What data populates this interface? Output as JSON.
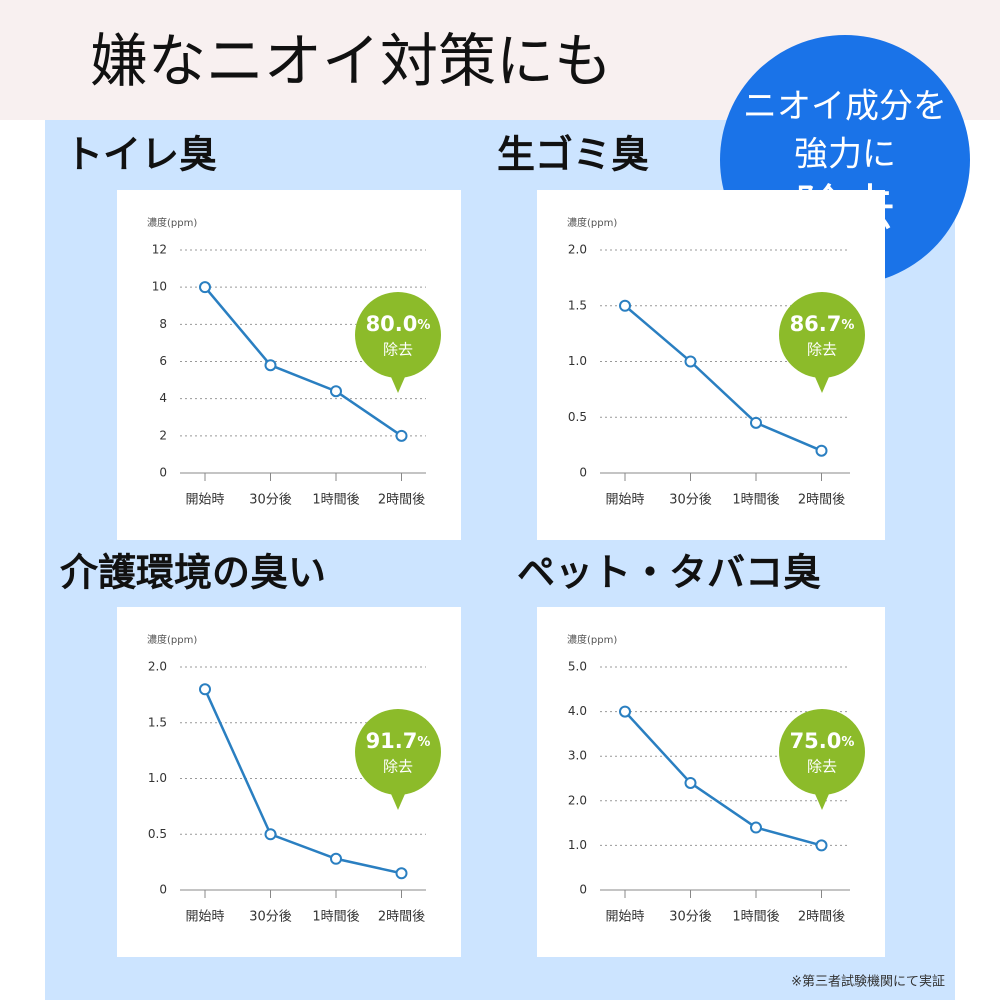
{
  "header": {
    "title": "嫌なニオイ対策にも"
  },
  "callout": {
    "lines": [
      "ニオイ成分を",
      "強力に",
      "除去"
    ]
  },
  "footnote": "※第三者試験機関にて実証",
  "chart_data": [
    {
      "type": "line",
      "title": "トイレ臭",
      "y_label": "濃度(ppm)",
      "categories": [
        "開始時",
        "30分後",
        "1時間後",
        "2時間後"
      ],
      "values": [
        10,
        5.8,
        4.4,
        2
      ],
      "color": "#2a7fc1",
      "ylim": [
        0,
        12
      ],
      "yticks": [
        0,
        2,
        4,
        6,
        8,
        10,
        12
      ],
      "grid": true,
      "badge": {
        "value": "80.0",
        "unit": "%",
        "label": "除去"
      }
    },
    {
      "type": "line",
      "title": "生ゴミ臭",
      "y_label": "濃度(ppm)",
      "categories": [
        "開始時",
        "30分後",
        "1時間後",
        "2時間後"
      ],
      "values": [
        1.5,
        1.0,
        0.45,
        0.2
      ],
      "color": "#2a7fc1",
      "ylim": [
        0,
        2
      ],
      "yticks": [
        0,
        0.5,
        {
          "value": 1,
          "label": "1.0"
        },
        1.5,
        {
          "value": 2,
          "label": "2.0"
        }
      ],
      "grid": true,
      "badge": {
        "value": "86.7",
        "unit": "%",
        "label": "除去"
      }
    },
    {
      "type": "line",
      "title": "介護環境の臭い",
      "y_label": "濃度(ppm)",
      "categories": [
        "開始時",
        "30分後",
        "1時間後",
        "2時間後"
      ],
      "values": [
        1.8,
        0.5,
        0.28,
        0.15
      ],
      "color": "#2a7fc1",
      "ylim": [
        0,
        2
      ],
      "yticks": [
        0,
        0.5,
        {
          "value": 1,
          "label": "1.0"
        },
        1.5,
        {
          "value": 2,
          "label": "2.0"
        }
      ],
      "grid": true,
      "badge": {
        "value": "91.7",
        "unit": "%",
        "label": "除去"
      }
    },
    {
      "type": "line",
      "title": "ペット・タバコ臭",
      "y_label": "濃度(ppm)",
      "categories": [
        "開始時",
        "30分後",
        "1時間後",
        "2時間後"
      ],
      "values": [
        4.0,
        2.4,
        1.4,
        1.0
      ],
      "color": "#2a7fc1",
      "ylim": [
        0,
        5
      ],
      "yticks": [
        0,
        {
          "value": 1,
          "label": "1.0"
        },
        {
          "value": 2,
          "label": "2.0"
        },
        {
          "value": 3,
          "label": "3.0"
        },
        {
          "value": 4,
          "label": "4.0"
        },
        {
          "value": 5,
          "label": "5.0"
        }
      ],
      "grid": true,
      "badge": {
        "value": "75.0",
        "unit": "%",
        "label": "除去"
      }
    }
  ]
}
